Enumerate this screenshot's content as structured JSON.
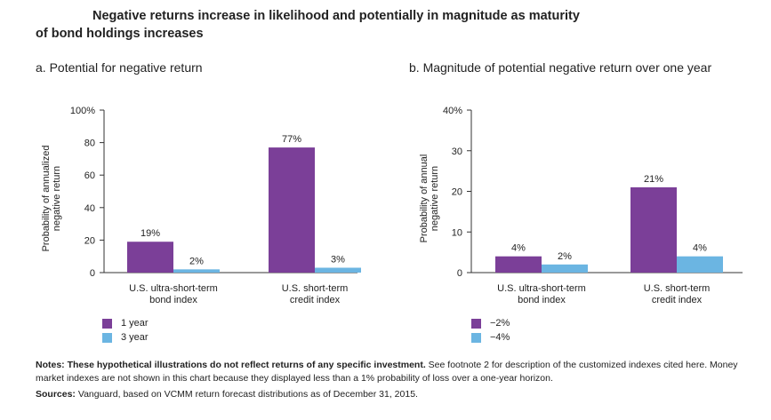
{
  "title": {
    "line1": "Negative returns increase in likelihood and potentially in magnitude as maturity",
    "line2": "of bond holdings increases"
  },
  "colors": {
    "series1": "#7b3f98",
    "series2": "#6bb5e2"
  },
  "chart_data": [
    {
      "type": "bar",
      "title": "a. Potential for negative return",
      "categories": [
        [
          "U.S. ultra-short-term",
          "bond index"
        ],
        [
          "U.S. short-term",
          "credit index"
        ]
      ],
      "series": [
        {
          "name": "1 year",
          "values": [
            19,
            77
          ],
          "labels": [
            "19%",
            "77%"
          ]
        },
        {
          "name": "3 year",
          "values": [
            2,
            3
          ],
          "labels": [
            "2%",
            "3%"
          ]
        }
      ],
      "ylabel": [
        "Probability of annualized",
        "negative return"
      ],
      "ylim": [
        0,
        100
      ],
      "yticks": [
        0,
        20,
        40,
        60,
        80,
        100
      ],
      "ytick_labels": [
        "0",
        "20",
        "40",
        "60",
        "80",
        "100%"
      ]
    },
    {
      "type": "bar",
      "title": "b. Magnitude of potential negative return over one year",
      "categories": [
        [
          "U.S. ultra-short-term",
          "bond index"
        ],
        [
          "U.S. short-term",
          "credit index"
        ]
      ],
      "series": [
        {
          "name": "−2%",
          "values": [
            4,
            21
          ],
          "labels": [
            "4%",
            "21%"
          ]
        },
        {
          "name": "−4%",
          "values": [
            2,
            4
          ],
          "labels": [
            "2%",
            "4%"
          ]
        }
      ],
      "ylabel": [
        "Probability of annual",
        "negative return"
      ],
      "ylim": [
        0,
        40
      ],
      "yticks": [
        0,
        10,
        20,
        30,
        40
      ],
      "ytick_labels": [
        "0",
        "10",
        "20",
        "30",
        "40%"
      ]
    }
  ],
  "notes": {
    "notes_label": "Notes: These hypothetical illustrations do not reflect returns of any specific investment.",
    "notes_text": " See footnote 2 for description of the customized indexes cited here. Money market indexes are not shown in this chart because they displayed less than a 1% probability of loss over a one-year horizon.",
    "sources_label": "Sources:",
    "sources_text": " Vanguard, based on VCMM return forecast distributions as of December 31, 2015."
  }
}
